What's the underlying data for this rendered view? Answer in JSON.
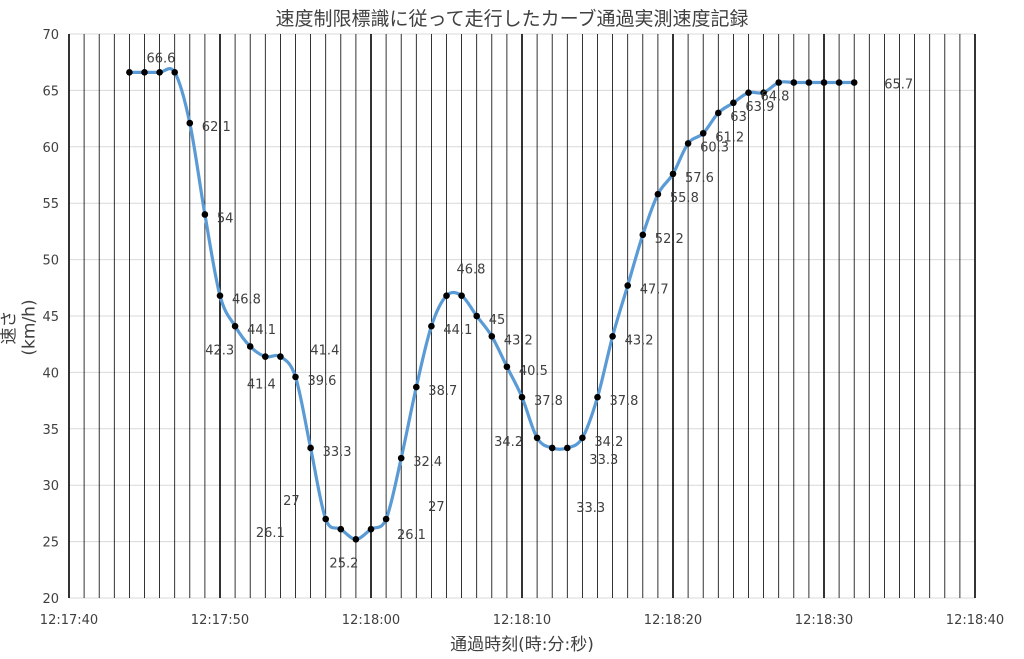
{
  "chart_data": {
    "type": "line",
    "title": "速度制限標識に従って走行したカーブ通過実測速度記録",
    "xlabel": "通過時刻(時:分:秒)",
    "ylabel": "速さ(km/h)",
    "ylim": [
      20,
      70
    ],
    "yticks": [
      20,
      25,
      30,
      35,
      40,
      45,
      50,
      55,
      60,
      65,
      70
    ],
    "xlim": [
      "12:17:40",
      "12:18:40"
    ],
    "xticks": [
      "12:17:40",
      "12:17:50",
      "12:18:00",
      "12:18:10",
      "12:18:20",
      "12:18:30",
      "12:18:40"
    ],
    "grid": "vertical lines every 1 s, heavier every 10 s",
    "line_color": "#5b9bd5",
    "marker_color": "#000000",
    "series": [
      {
        "x": [
          "12:17:44",
          "12:17:45",
          "12:17:46",
          "12:17:47",
          "12:17:48",
          "12:17:49",
          "12:17:50",
          "12:17:51",
          "12:17:52",
          "12:17:53",
          "12:17:54",
          "12:17:55",
          "12:17:56",
          "12:17:57",
          "12:17:58",
          "12:17:59",
          "12:18:00",
          "12:18:01",
          "12:18:02",
          "12:18:03",
          "12:18:04",
          "12:18:05",
          "12:18:06",
          "12:18:07",
          "12:18:08",
          "12:18:09",
          "12:18:10",
          "12:18:11",
          "12:18:12",
          "12:18:13",
          "12:18:14",
          "12:18:15",
          "12:18:16",
          "12:18:17",
          "12:18:18",
          "12:18:19",
          "12:18:20",
          "12:18:21",
          "12:18:22",
          "12:18:23",
          "12:18:24",
          "12:18:25",
          "12:18:26",
          "12:18:27",
          "12:18:28",
          "12:18:29",
          "12:18:30",
          "12:18:31",
          "12:18:32"
        ],
        "values": [
          66.6,
          66.6,
          66.6,
          66.6,
          62.1,
          54,
          46.8,
          44.1,
          42.3,
          41.4,
          41.4,
          39.6,
          33.3,
          27,
          26.1,
          25.2,
          26.1,
          27,
          32.4,
          38.7,
          44.1,
          46.8,
          46.8,
          45,
          43.2,
          40.5,
          37.8,
          34.2,
          33.3,
          33.3,
          34.2,
          37.8,
          43.2,
          47.7,
          52.2,
          55.8,
          57.6,
          60.3,
          61.2,
          63,
          63.9,
          64.8,
          64.8,
          65.7,
          65.7,
          65.7,
          65.7,
          65.7,
          65.7
        ]
      }
    ],
    "annotations": [
      {
        "i": 1,
        "text": "66.6"
      },
      {
        "i": 4,
        "text": "62.1"
      },
      {
        "i": 5,
        "text": "54"
      },
      {
        "i": 6,
        "text": "46.8"
      },
      {
        "i": 7,
        "text": "44.1"
      },
      {
        "i": 8,
        "text": "42.3"
      },
      {
        "i": 9,
        "text": "41.4"
      },
      {
        "i": 10,
        "text": "41.4"
      },
      {
        "i": 11,
        "text": "39.6"
      },
      {
        "i": 12,
        "text": "33.3"
      },
      {
        "i": 13,
        "text": "27"
      },
      {
        "i": 14,
        "text": "26.1"
      },
      {
        "i": 15,
        "text": "25.2"
      },
      {
        "i": 16,
        "text": "26.1"
      },
      {
        "i": 17,
        "text": "27"
      },
      {
        "i": 18,
        "text": "32.4"
      },
      {
        "i": 19,
        "text": "38.7"
      },
      {
        "i": 20,
        "text": "44.1"
      },
      {
        "i": 21,
        "text": "46.8"
      },
      {
        "i": 23,
        "text": "45"
      },
      {
        "i": 24,
        "text": "43.2"
      },
      {
        "i": 25,
        "text": "40.5"
      },
      {
        "i": 26,
        "text": "37.8"
      },
      {
        "i": 27,
        "text": "34.2"
      },
      {
        "i": 28,
        "text": "33.3"
      },
      {
        "i": 29,
        "text": "33.3"
      },
      {
        "i": 30,
        "text": "34.2"
      },
      {
        "i": 31,
        "text": "37.8"
      },
      {
        "i": 32,
        "text": "43.2"
      },
      {
        "i": 33,
        "text": "47.7"
      },
      {
        "i": 34,
        "text": "52.2"
      },
      {
        "i": 35,
        "text": "55.8"
      },
      {
        "i": 36,
        "text": "57.6"
      },
      {
        "i": 37,
        "text": "60.3"
      },
      {
        "i": 38,
        "text": "61.2"
      },
      {
        "i": 39,
        "text": "63"
      },
      {
        "i": 40,
        "text": "63.9"
      },
      {
        "i": 41,
        "text": "64.8"
      },
      {
        "i": 48,
        "text": "65.7"
      }
    ]
  }
}
